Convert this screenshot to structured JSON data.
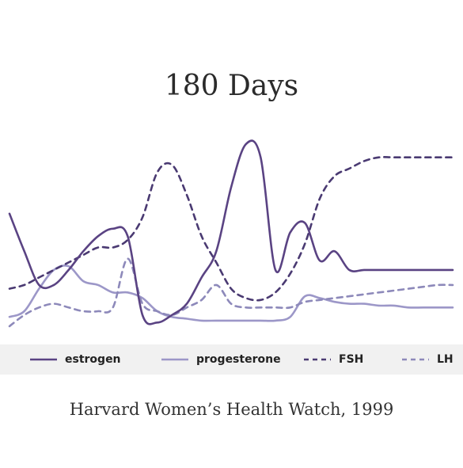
{
  "title": "180 Days",
  "source": "Harvard Women’s Health Watch, 1999",
  "chart_data": {
    "type": "line",
    "title": "180 Days",
    "xlabel": "",
    "ylabel": "",
    "xlim": [
      0,
      180
    ],
    "ylim": [
      0,
      100
    ],
    "grid": false,
    "axes_visible": false,
    "legend_position": "bottom",
    "x": [
      0,
      6,
      12,
      18,
      24,
      30,
      36,
      42,
      48,
      54,
      60,
      66,
      72,
      78,
      84,
      90,
      96,
      102,
      108,
      114,
      120,
      126,
      132,
      138,
      144,
      150,
      156,
      162,
      168,
      174,
      180
    ],
    "series": [
      {
        "name": "estrogen",
        "color": "#5a4383",
        "style": "solid",
        "values": [
          60,
          40,
          22,
          22,
          30,
          40,
          48,
          52,
          48,
          6,
          2,
          6,
          12,
          26,
          40,
          74,
          97,
          90,
          30,
          50,
          55,
          35,
          40,
          30,
          30,
          30,
          30,
          30,
          30,
          30,
          30
        ]
      },
      {
        "name": "progesterone",
        "color": "#9c97c8",
        "style": "solid",
        "values": [
          5,
          8,
          20,
          30,
          32,
          24,
          22,
          18,
          18,
          15,
          8,
          5,
          4,
          3,
          3,
          3,
          3,
          3,
          3,
          5,
          16,
          15,
          13,
          12,
          12,
          11,
          11,
          10,
          10,
          10,
          10
        ]
      },
      {
        "name": "FSH",
        "color": "#4a3a72",
        "style": "dashed",
        "values": [
          20,
          22,
          26,
          30,
          34,
          38,
          42,
          42,
          46,
          58,
          82,
          86,
          70,
          48,
          34,
          20,
          15,
          14,
          18,
          28,
          44,
          68,
          80,
          84,
          88,
          90,
          90,
          90,
          90,
          90,
          90
        ]
      },
      {
        "name": "LH",
        "color": "#8d89ba",
        "style": "dashed",
        "values": [
          0,
          6,
          10,
          12,
          10,
          8,
          8,
          10,
          36,
          12,
          8,
          6,
          10,
          14,
          22,
          12,
          10,
          10,
          10,
          10,
          13,
          14,
          15,
          16,
          17,
          18,
          19,
          20,
          21,
          22,
          22
        ]
      }
    ]
  }
}
